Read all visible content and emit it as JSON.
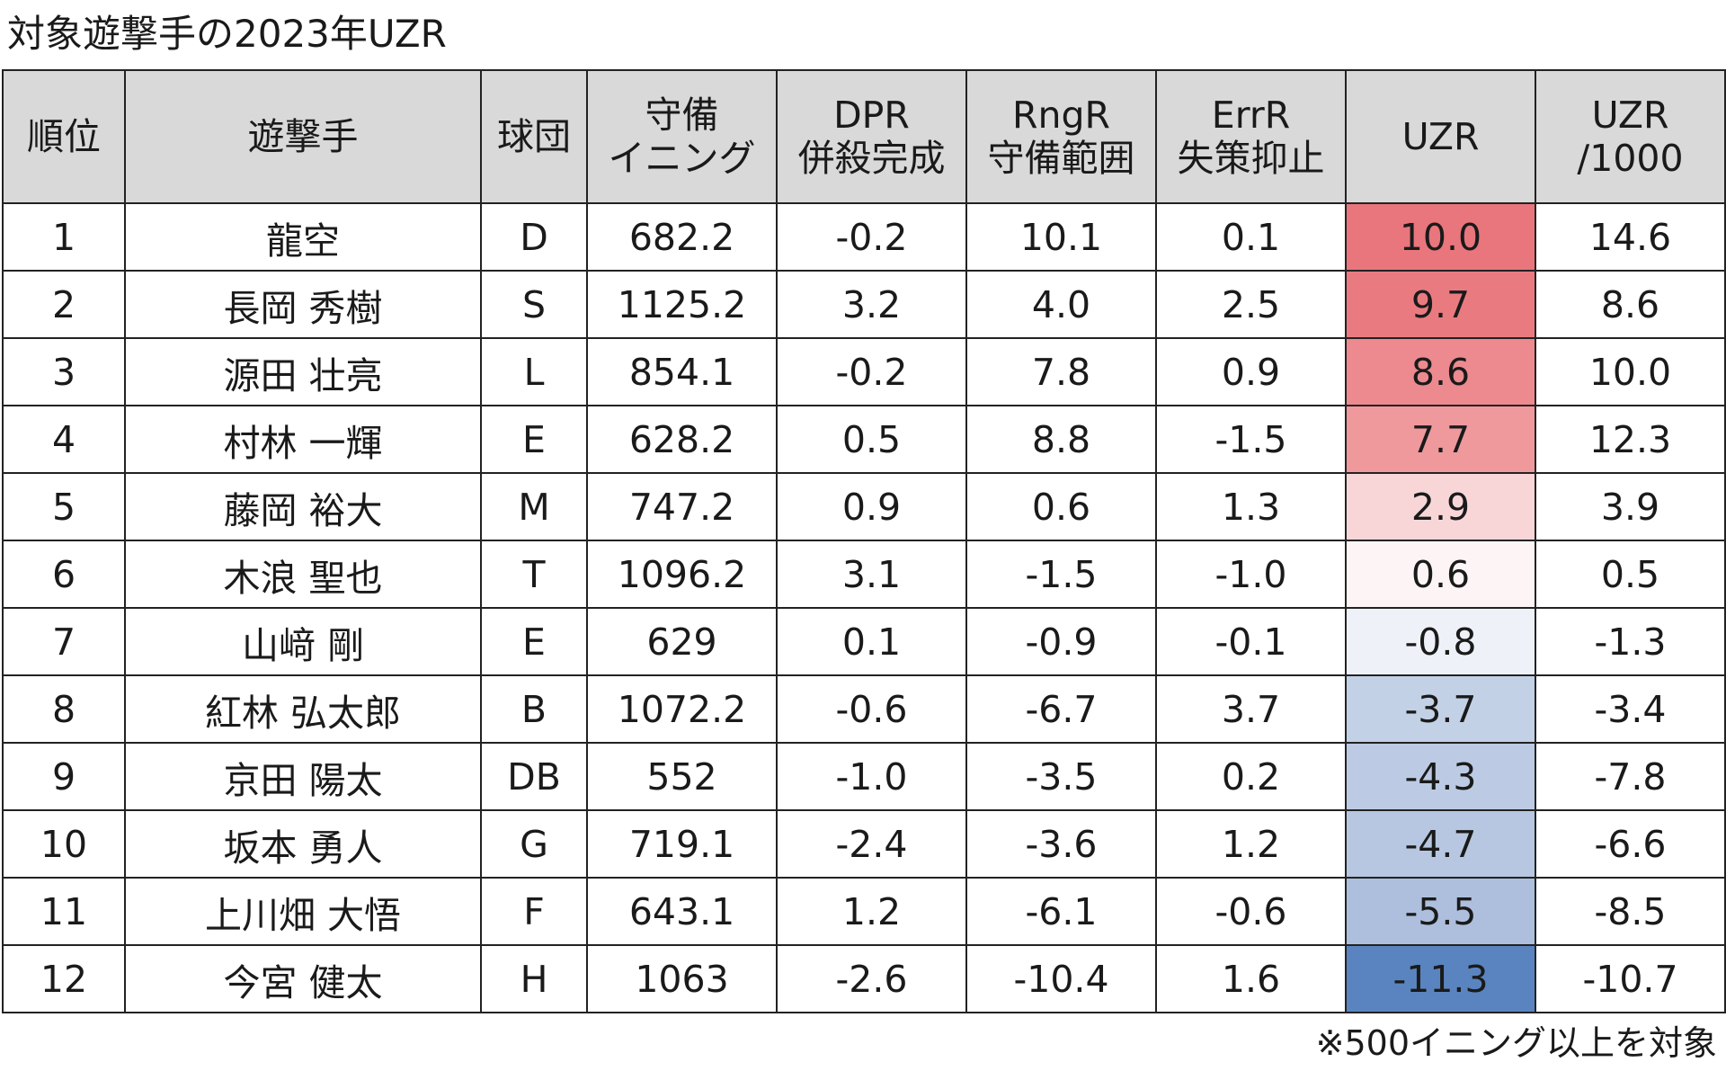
{
  "title": "対象遊撃手の2023年UZR",
  "headers": {
    "rank": "順位",
    "player": "遊撃手",
    "team": "球団",
    "innings": [
      "守備",
      "イニング"
    ],
    "dpr": [
      "DPR",
      "併殺完成"
    ],
    "rngr": [
      "RngR",
      "守備範囲"
    ],
    "errr": [
      "ErrR",
      "失策抑止"
    ],
    "uzr": "UZR",
    "uzr1000": [
      "UZR",
      "/1000"
    ]
  },
  "rows": [
    {
      "rank": "1",
      "player": "龍空",
      "team": "D",
      "innings": "682.2",
      "dpr": "-0.2",
      "rngr": "10.1",
      "errr": "0.1",
      "uzr": "10.0",
      "uzr1000": "14.6",
      "uzr_color": "#e8767c"
    },
    {
      "rank": "2",
      "player": "長岡 秀樹",
      "team": "S",
      "innings": "1125.2",
      "dpr": "3.2",
      "rngr": "4.0",
      "errr": "2.5",
      "uzr": "9.7",
      "uzr1000": "8.6",
      "uzr_color": "#e97b80"
    },
    {
      "rank": "3",
      "player": "源田 壮亮",
      "team": "L",
      "innings": "854.1",
      "dpr": "-0.2",
      "rngr": "7.8",
      "errr": "0.9",
      "uzr": "8.6",
      "uzr1000": "10.0",
      "uzr_color": "#ec8a8f"
    },
    {
      "rank": "4",
      "player": "村林 一輝",
      "team": "E",
      "innings": "628.2",
      "dpr": "0.5",
      "rngr": "8.8",
      "errr": "-1.5",
      "uzr": "7.7",
      "uzr1000": "12.3",
      "uzr_color": "#ef999d"
    },
    {
      "rank": "5",
      "player": "藤岡 裕大",
      "team": "M",
      "innings": "747.2",
      "dpr": "0.9",
      "rngr": "0.6",
      "errr": "1.3",
      "uzr": "2.9",
      "uzr1000": "3.9",
      "uzr_color": "#f8d6d8"
    },
    {
      "rank": "6",
      "player": "木浪 聖也",
      "team": "T",
      "innings": "1096.2",
      "dpr": "3.1",
      "rngr": "-1.5",
      "errr": "-1.0",
      "uzr": "0.6",
      "uzr1000": "0.5",
      "uzr_color": "#fdf4f5"
    },
    {
      "rank": "7",
      "player": "山﨑 剛",
      "team": "E",
      "innings": "629",
      "dpr": "0.1",
      "rngr": "-0.9",
      "errr": "-0.1",
      "uzr": "-0.8",
      "uzr1000": "-1.3",
      "uzr_color": "#eef1f8"
    },
    {
      "rank": "8",
      "player": "紅林 弘太郎",
      "team": "B",
      "innings": "1072.2",
      "dpr": "-0.6",
      "rngr": "-6.7",
      "errr": "3.7",
      "uzr": "-3.7",
      "uzr1000": "-3.4",
      "uzr_color": "#c3d1e6"
    },
    {
      "rank": "9",
      "player": "京田 陽太",
      "team": "DB",
      "innings": "552",
      "dpr": "-1.0",
      "rngr": "-3.5",
      "errr": "0.2",
      "uzr": "-4.3",
      "uzr1000": "-7.8",
      "uzr_color": "#bccbe3"
    },
    {
      "rank": "10",
      "player": "坂本 勇人",
      "team": "G",
      "innings": "719.1",
      "dpr": "-2.4",
      "rngr": "-3.6",
      "errr": "1.2",
      "uzr": "-4.7",
      "uzr1000": "-6.6",
      "uzr_color": "#b7c7e1"
    },
    {
      "rank": "11",
      "player": "上川畑 大悟",
      "team": "F",
      "innings": "643.1",
      "dpr": "1.2",
      "rngr": "-6.1",
      "errr": "-0.6",
      "uzr": "-5.5",
      "uzr1000": "-8.5",
      "uzr_color": "#adbfdc"
    },
    {
      "rank": "12",
      "player": "今宮 健太",
      "team": "H",
      "innings": "1063",
      "dpr": "-2.6",
      "rngr": "-10.4",
      "errr": "1.6",
      "uzr": "-11.3",
      "uzr1000": "-10.7",
      "uzr_color": "#5a84bf"
    }
  ],
  "note": "※500イニング以上を対象"
}
